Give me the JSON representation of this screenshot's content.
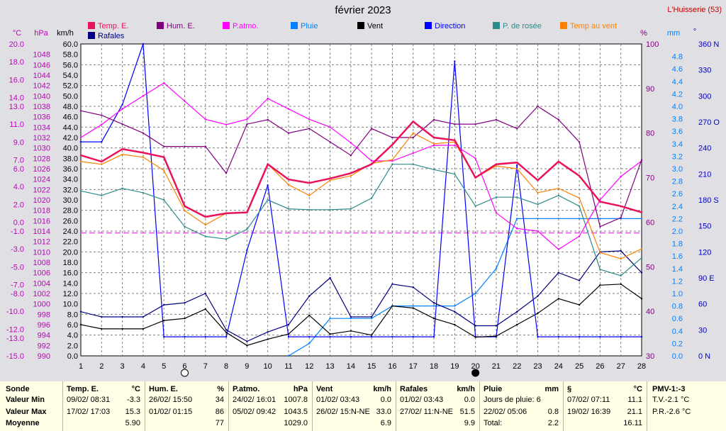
{
  "title": "février 2023",
  "location": "L'Huisserie (53)",
  "legend": [
    {
      "label": "Temp. E.",
      "color": "#e8135a"
    },
    {
      "label": "Hum. E.",
      "color": "#800080"
    },
    {
      "label": "P.atmo.",
      "color": "#ff00ff"
    },
    {
      "label": "Pluie",
      "color": "#0080ff"
    },
    {
      "label": "Vent",
      "color": "#000000"
    },
    {
      "label": "Direction",
      "color": "#0000ff"
    },
    {
      "label": "P. de rosée",
      "color": "#2e8b8b"
    },
    {
      "label": "Temp au vent",
      "color": "#ff8000"
    },
    {
      "label": "Rafales",
      "color": "#000080"
    }
  ],
  "axis_units": {
    "temp": "°C",
    "pressure": "hPa",
    "wind": "km/h",
    "humidity": "%",
    "rain": "mm",
    "direction": "°"
  },
  "axes": {
    "temp_ticks": [
      "20.0",
      "18.0",
      "16.0",
      "14.0",
      "13.0",
      "11.0",
      "9.0",
      "7.0",
      "6.0",
      "4.0",
      "2.0",
      "0.0",
      "-1.0",
      "-3.0",
      "-5.0",
      "-7.0",
      "-8.0",
      "-10.0",
      "-12.0",
      "-13.0",
      "-15.0"
    ],
    "pressure_ticks": [
      "1048",
      "1046",
      "1044",
      "1042",
      "1040",
      "1038",
      "1036",
      "1034",
      "1032",
      "1030",
      "1028",
      "1026",
      "1024",
      "1022",
      "1020",
      "1018",
      "1016",
      "1014",
      "1012",
      "1010",
      "1008",
      "1006",
      "1004",
      "1002",
      "1000",
      "998",
      "996",
      "994",
      "992",
      "990"
    ],
    "wind_ticks": [
      "60.0",
      "58.0",
      "56.0",
      "54.0",
      "52.0",
      "50.0",
      "48.0",
      "46.0",
      "44.0",
      "42.0",
      "40.0",
      "38.0",
      "36.0",
      "34.0",
      "32.0",
      "30.0",
      "28.0",
      "26.0",
      "24.0",
      "22.0",
      "20.0",
      "18.0",
      "16.0",
      "14.0",
      "12.0",
      "10.0",
      "8.0",
      "6.0",
      "4.0",
      "2.0",
      "0.0"
    ],
    "humidity_ticks": [
      "100",
      "90",
      "80",
      "70",
      "60",
      "50",
      "40",
      "30"
    ],
    "rain_ticks": [
      "4.8",
      "4.6",
      "4.4",
      "4.2",
      "4.0",
      "3.8",
      "3.6",
      "3.4",
      "3.2",
      "3.0",
      "2.8",
      "2.6",
      "2.4",
      "2.2",
      "2.0",
      "1.8",
      "1.6",
      "1.4",
      "1.2",
      "1.0",
      "0.8",
      "0.6",
      "0.4",
      "0.2",
      "0.0"
    ],
    "direction_ticks": [
      "360 N",
      "330",
      "300",
      "270 O",
      "240",
      "210",
      "180 S",
      "150",
      "120",
      "90  E",
      "60",
      "30",
      "0   N"
    ]
  },
  "chart_data": {
    "type": "line",
    "x": [
      1,
      2,
      3,
      4,
      5,
      6,
      7,
      8,
      9,
      10,
      11,
      12,
      13,
      14,
      15,
      16,
      17,
      18,
      19,
      20,
      21,
      22,
      23,
      24,
      25,
      26,
      27,
      28
    ],
    "xlim": [
      1,
      28
    ],
    "moon_markers": [
      {
        "day": 6,
        "phase": "full"
      },
      {
        "day": 20,
        "phase": "new"
      }
    ],
    "series": [
      {
        "name": "Temp. E.",
        "unit": "°C",
        "ylim": [
          -15,
          20
        ],
        "color": "#e8135a",
        "values": [
          7.5,
          6.8,
          8.2,
          7.8,
          7.3,
          1.8,
          0.6,
          1.0,
          1.1,
          6.5,
          4.8,
          4.4,
          4.9,
          5.5,
          6.5,
          8.7,
          11.3,
          9.5,
          9.2,
          5.0,
          6.5,
          6.7,
          4.7,
          6.8,
          5.2,
          2.3,
          1.8,
          1.1
        ]
      },
      {
        "name": "Hum. E.",
        "unit": "%",
        "ylim": [
          30,
          100
        ],
        "color": "#800080",
        "values": [
          85,
          84,
          82,
          80,
          77,
          77,
          77,
          71,
          82,
          83,
          80,
          81,
          78,
          75,
          81,
          79,
          79,
          83,
          82,
          82,
          83,
          81,
          86,
          83,
          78,
          59,
          61,
          74
        ]
      },
      {
        "name": "P.atmo.",
        "unit": "hPa",
        "ylim": [
          990,
          1050
        ],
        "color": "#ff00ff",
        "values": [
          1032,
          1034.5,
          1037.5,
          1040,
          1042.5,
          1039,
          1035.5,
          1034.5,
          1035.5,
          1039.5,
          1037.5,
          1035.5,
          1034,
          1031,
          1027.5,
          1027.5,
          1029,
          1030.5,
          1030.5,
          1028,
          1017.5,
          1014.5,
          1014,
          1010.5,
          1013,
          1020,
          1024.5,
          1027.5
        ]
      },
      {
        "name": "Pluie",
        "unit": "mm",
        "ylim": [
          0,
          5
        ],
        "color": "#0080ff",
        "values": [
          null,
          null,
          null,
          null,
          null,
          null,
          null,
          null,
          null,
          null,
          0,
          0.2,
          0.6,
          0.6,
          0.6,
          0.8,
          0.8,
          0.8,
          0.8,
          1.0,
          1.4,
          2.2,
          2.2,
          2.2,
          2.2,
          2.2,
          2.2,
          2.2
        ]
      },
      {
        "name": "Vent",
        "unit": "km/h",
        "ylim": [
          0,
          60
        ],
        "color": "#000000",
        "values": [
          6.0,
          5.2,
          5.2,
          5.2,
          6.8,
          7.2,
          9.0,
          4.5,
          2.0,
          3.2,
          4.2,
          7.8,
          4.2,
          4.8,
          4.0,
          9.6,
          9.2,
          7.2,
          6.0,
          3.6,
          3.8,
          6.0,
          8.2,
          11.0,
          9.8,
          13.6,
          13.8,
          11.0
        ]
      },
      {
        "name": "Direction",
        "unit": "°",
        "ylim": [
          0,
          360
        ],
        "color": "#0000ff",
        "values": [
          247,
          247,
          290,
          360,
          22,
          22,
          22,
          22,
          122,
          197,
          22,
          22,
          22,
          22,
          22,
          22,
          22,
          22,
          340,
          22,
          22,
          220,
          22,
          22,
          22,
          22,
          22,
          22
        ]
      },
      {
        "name": "P. de rosée",
        "unit": "°C",
        "ylim": [
          -15,
          20
        ],
        "color": "#2e8b8b",
        "values": [
          3.5,
          3.0,
          3.8,
          3.3,
          2.5,
          -0.5,
          -1.6,
          -1.9,
          -0.8,
          2.5,
          1.5,
          1.4,
          1.4,
          1.5,
          2.7,
          6.5,
          6.5,
          5.9,
          5.4,
          1.8,
          2.8,
          2.8,
          2.0,
          3.0,
          1.8,
          -5.3,
          -6.0,
          -4.0
        ]
      },
      {
        "name": "Temp au vent",
        "unit": "°C",
        "ylim": [
          -15,
          20
        ],
        "color": "#ff8000",
        "values": [
          6.8,
          6.5,
          7.6,
          7.3,
          5.8,
          1.3,
          -0.3,
          1.0,
          1.1,
          6.5,
          4.2,
          3.0,
          4.7,
          5.2,
          6.6,
          7.0,
          10.0,
          8.8,
          9.0,
          5.0,
          6.3,
          6.0,
          3.3,
          3.8,
          2.7,
          -3.4,
          -4.1,
          -3.0
        ]
      },
      {
        "name": "Rafales",
        "unit": "km/h",
        "ylim": [
          0,
          60
        ],
        "color": "#000080",
        "values": [
          8.5,
          7.5,
          7.5,
          7.5,
          9.8,
          10.2,
          12.0,
          5.0,
          2.8,
          4.6,
          6.0,
          11.5,
          15.0,
          7.5,
          7.5,
          13.8,
          13.2,
          10.2,
          8.5,
          5.8,
          5.8,
          8.5,
          11.5,
          16.0,
          14.5,
          20.0,
          20.2,
          16.0
        ]
      }
    ],
    "reference_line": {
      "series": "Temp. E.",
      "value": -1.2,
      "color": "#e14ee1"
    }
  },
  "stats": {
    "sonde": {
      "title": "Sonde",
      "rows": [
        "Valeur Min",
        "Valeur Max",
        "Moyenne"
      ]
    },
    "temp": {
      "title": "Temp. E.",
      "unit": "°C",
      "min_date": "09/02/ 08:31",
      "min_val": "-3.3",
      "max_date": "17/02/ 17:03",
      "max_val": "15.3",
      "avg": "5.90"
    },
    "hum": {
      "title": "Hum. E.",
      "unit": "%",
      "min_date": "26/02/ 15:50",
      "min_val": "34",
      "max_date": "01/02/ 01:15",
      "max_val": "86",
      "avg": "77"
    },
    "patmo": {
      "title": "P.atmo.",
      "unit": "hPa",
      "min_date": "24/02/ 16:01",
      "min_val": "1007.8",
      "max_date": "05/02/ 09:42",
      "max_val": "1043.5",
      "avg": "1029.0"
    },
    "vent": {
      "title": "Vent",
      "unit": "km/h",
      "min_date": "01/02/ 03:43",
      "min_val": "0.0",
      "max_date": "26/02/ 15:N-NE",
      "max_val": "33.0",
      "avg": "6.9"
    },
    "rafales": {
      "title": "Rafales",
      "unit": "km/h",
      "min_date": "01/02/ 03:43",
      "min_val": "0.0",
      "max_date": "27/02/ 11:N-NE",
      "max_val": "51.5",
      "avg": "9.9"
    },
    "pluie": {
      "title": "Pluie",
      "unit": "mm",
      "r1": "Jours de pluie: 6",
      "r2": "22/02/ 05:06",
      "r2_val": "0.8",
      "r3": "Total:",
      "r3_val": "2.2"
    },
    "sect": {
      "title": "§",
      "unit": "°C",
      "r1": "07/02/  07:11",
      "r1_val": "11.1",
      "r2": "19/02/ 16:39",
      "r2_val": "21.1",
      "r3_val": "16.11"
    },
    "pmv": {
      "title": "PMV-1:-3",
      "r1": "T.V.-2.1 °C",
      "r2": "P.R.-2.6 °C"
    }
  }
}
